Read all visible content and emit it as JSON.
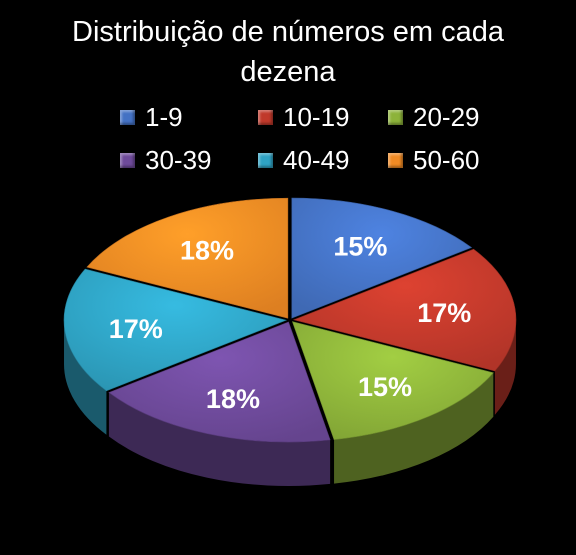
{
  "chart_data": {
    "type": "pie",
    "title": "Distribuição de números em cada dezena",
    "title_lines": [
      "Distribuição de números em cada",
      "dezena"
    ],
    "categories": [
      "1-9",
      "10-19",
      "20-29",
      "30-39",
      "40-49",
      "50-60"
    ],
    "values": [
      15,
      17,
      15,
      18,
      17,
      18
    ],
    "labels": [
      "15%",
      "17%",
      "15%",
      "18%",
      "17%",
      "18%"
    ],
    "colors": [
      "#4472C4",
      "#C0392B",
      "#8DB33A",
      "#6E4A9A",
      "#2FA3C4",
      "#F08A24"
    ],
    "legend_position": "top",
    "style": "3d-exploded-tilted"
  }
}
